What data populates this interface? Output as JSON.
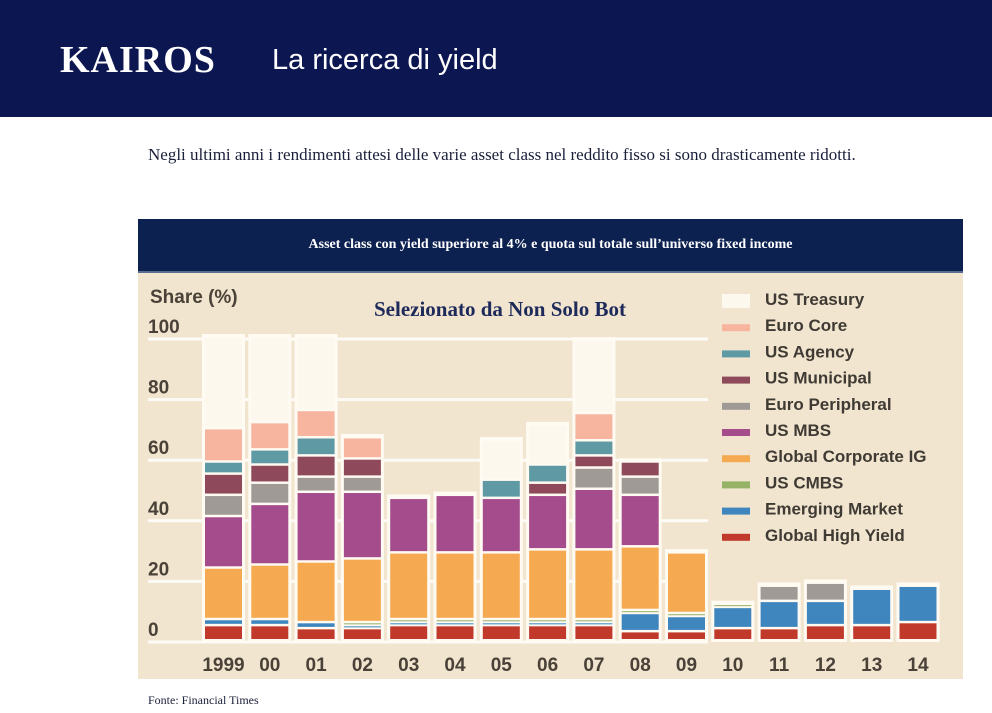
{
  "header": {
    "logo_text": "KAIROS",
    "title": "La ricerca di yield"
  },
  "intro_text": "Negli ultimi anni i rendimenti attesi delle varie asset class nel reddito fisso si sono drasticamente ridotti.",
  "banner_title": "Asset class con yield superiore al 4% e quota sul totale sull’universo fixed income",
  "watermark": "Selezionato da Non Solo Bot",
  "source": "Fonte: Financial Times",
  "chart_data": {
    "type": "bar",
    "stacked": true,
    "title": "",
    "ylabel": "Share (%)",
    "xlabel": "",
    "ylim": [
      0,
      100
    ],
    "yticks": [
      0,
      20,
      40,
      60,
      80,
      100
    ],
    "grid": true,
    "legend_position": "top-right",
    "categories": [
      "1999",
      "00",
      "01",
      "02",
      "03",
      "04",
      "05",
      "06",
      "07",
      "08",
      "09",
      "10",
      "11",
      "12",
      "13",
      "14"
    ],
    "series": [
      {
        "name": "Global High Yield",
        "color": "#c0392b",
        "values": [
          5,
          5,
          4,
          4,
          5,
          5,
          5,
          5,
          5,
          3,
          3,
          4,
          4,
          5,
          5,
          6
        ]
      },
      {
        "name": "Emerging Market",
        "color": "#3f86bf",
        "values": [
          2,
          2,
          2,
          1,
          1,
          1,
          1,
          1,
          1,
          6,
          5,
          7,
          9,
          8,
          12,
          12
        ]
      },
      {
        "name": "US CMBS",
        "color": "#95b266",
        "values": [
          0,
          0,
          0,
          1,
          1,
          1,
          1,
          1,
          1,
          1,
          1,
          1,
          0,
          0,
          0,
          0
        ]
      },
      {
        "name": "Global Corporate IG",
        "color": "#f5aa52",
        "values": [
          17,
          18,
          20,
          21,
          22,
          22,
          22,
          23,
          23,
          21,
          20,
          0,
          0,
          0,
          0,
          0
        ]
      },
      {
        "name": "US MBS",
        "color": "#a44c8c",
        "values": [
          17,
          20,
          23,
          22,
          18,
          19,
          18,
          18,
          20,
          17,
          0,
          0,
          0,
          0,
          0,
          0
        ]
      },
      {
        "name": "Euro Peripheral",
        "color": "#a09a96",
        "values": [
          7,
          7,
          5,
          5,
          0,
          0,
          0,
          0,
          7,
          6,
          0,
          0,
          5,
          6,
          0,
          0
        ]
      },
      {
        "name": "US Municipal",
        "color": "#8e4a5a",
        "values": [
          7,
          6,
          7,
          6,
          0,
          0,
          0,
          4,
          4,
          5,
          0,
          0,
          0,
          0,
          0,
          0
        ]
      },
      {
        "name": "US Agency",
        "color": "#5f9aa4",
        "values": [
          4,
          5,
          6,
          0,
          0,
          0,
          6,
          6,
          5,
          0,
          0,
          0,
          0,
          0,
          0,
          0
        ]
      },
      {
        "name": "Euro Core",
        "color": "#f7b5a0",
        "values": [
          11,
          9,
          9,
          7,
          0,
          0,
          0,
          0,
          9,
          0,
          0,
          0,
          0,
          0,
          0,
          0
        ]
      },
      {
        "name": "US Treasury",
        "color": "#fdf8ee",
        "values": [
          30,
          28,
          24,
          0,
          0,
          0,
          13,
          13,
          24,
          0,
          0,
          0,
          0,
          0,
          0,
          0
        ]
      }
    ]
  }
}
